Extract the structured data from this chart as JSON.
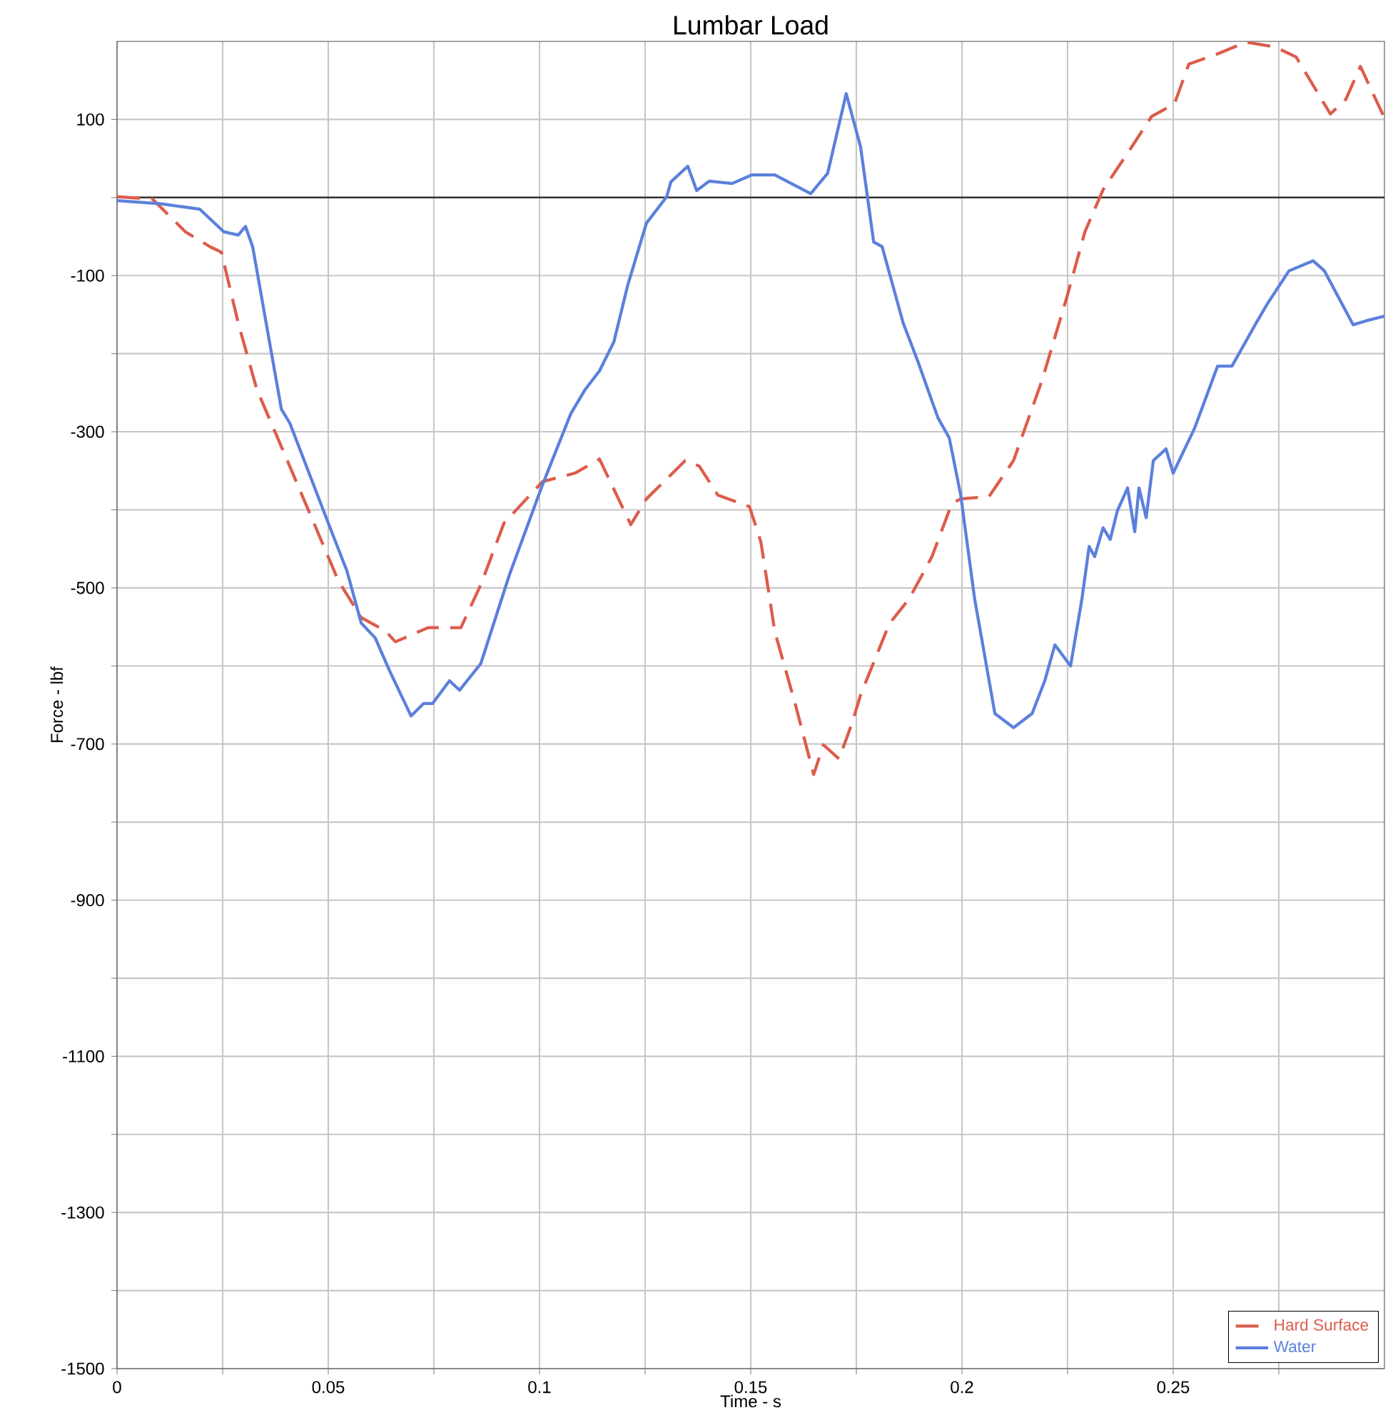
{
  "chart_data": {
    "type": "line",
    "title": "Lumbar Load",
    "xlabel": "Time - s",
    "ylabel": "Force - lbf",
    "xlim": [
      0,
      0.3
    ],
    "ylim": [
      -1500,
      200
    ],
    "xticks": [
      0,
      {
        "value": 0.025,
        "label": null
      },
      0.05,
      {
        "value": 0.075,
        "label": null
      },
      0.1,
      {
        "value": 0.125,
        "label": null
      },
      0.15,
      {
        "value": 0.175,
        "label": null
      },
      0.2,
      {
        "value": 0.225,
        "label": null
      },
      0.25,
      {
        "value": 0.275,
        "label": null
      }
    ],
    "yticks": [
      -1500,
      {
        "value": -1400,
        "label": null
      },
      -1300,
      {
        "value": -1200,
        "label": null
      },
      -1100,
      {
        "value": -1000,
        "label": null
      },
      -900,
      {
        "value": -800,
        "label": null
      },
      -700,
      {
        "value": -600,
        "label": null
      },
      -500,
      {
        "value": -400,
        "label": null
      },
      -300,
      {
        "value": -200,
        "label": null
      },
      -100,
      {
        "value": 0,
        "label": null
      },
      100
    ],
    "grid": true,
    "legend": "bottom right",
    "marker": "none",
    "ref_lines": [
      {
        "axis": "y",
        "value": 0,
        "color": "#333333",
        "line_style": "solid"
      }
    ],
    "series": [
      {
        "name": "Hard Surface",
        "color": "#dc5c4c",
        "line_style": "dashed",
        "x": [
          0,
          0.0084,
          0.0162,
          0.022,
          0.0247,
          0.0287,
          0.0331,
          0.0389,
          0.0466,
          0.0524,
          0.0578,
          0.0635,
          0.0659,
          0.0736,
          0.0814,
          0.0861,
          0.0916,
          0.1007,
          0.1084,
          0.1142,
          0.1216,
          0.1253,
          0.1345,
          0.1378,
          0.1422,
          0.1497,
          0.1524,
          0.1557,
          0.1605,
          0.1649,
          0.1672,
          0.1709,
          0.174,
          0.176,
          0.1828,
          0.1875,
          0.1929,
          0.1976,
          0.1997,
          0.2064,
          0.2122,
          0.2189,
          0.2247,
          0.2291,
          0.2334,
          0.2402,
          0.2449,
          0.2503,
          0.2537,
          0.2605,
          0.2672,
          0.274,
          0.2791,
          0.2872,
          0.2909,
          0.2943,
          0.3
        ],
        "values": [
          1,
          -2,
          -44,
          -63,
          -70,
          -161,
          -246,
          -319,
          -417,
          -491,
          -538,
          -555,
          -569,
          -551,
          -551,
          -496,
          -417,
          -364,
          -353,
          -335,
          -419,
          -386,
          -337,
          -344,
          -381,
          -396,
          -441,
          -556,
          -648,
          -739,
          -701,
          -719,
          -673,
          -637,
          -546,
          -514,
          -460,
          -392,
          -386,
          -383,
          -337,
          -235,
          -130,
          -44,
          10,
          65,
          104,
          120,
          171,
          184,
          199,
          193,
          180,
          107,
          126,
          168,
          102
        ]
      },
      {
        "name": "Water",
        "color": "#5b80dc",
        "line_style": "solid",
        "x": [
          0,
          0.0105,
          0.0196,
          0.0253,
          0.0287,
          0.0304,
          0.0321,
          0.0389,
          0.0409,
          0.05,
          0.0544,
          0.0578,
          0.0611,
          0.0645,
          0.0696,
          0.0726,
          0.0747,
          0.0787,
          0.0811,
          0.0861,
          0.0929,
          0.1007,
          0.1074,
          0.1108,
          0.1142,
          0.1176,
          0.1209,
          0.1253,
          0.1301,
          0.1311,
          0.1351,
          0.1372,
          0.1402,
          0.1456,
          0.1503,
          0.1557,
          0.1642,
          0.1682,
          0.1726,
          0.176,
          0.1791,
          0.1811,
          0.1861,
          0.1895,
          0.1943,
          0.197,
          0.1997,
          0.203,
          0.2078,
          0.2122,
          0.2166,
          0.2196,
          0.222,
          0.2257,
          0.2284,
          0.2301,
          0.2314,
          0.2334,
          0.2351,
          0.2368,
          0.2392,
          0.2409,
          0.2419,
          0.2436,
          0.2453,
          0.2483,
          0.25,
          0.2551,
          0.2605,
          0.2639,
          0.2696,
          0.2723,
          0.2774,
          0.2831,
          0.2858,
          0.2926,
          0.2956,
          0.3
        ],
        "values": [
          -4,
          -8,
          -15,
          -44,
          -48,
          -37,
          -63,
          -271,
          -289,
          -417,
          -478,
          -545,
          -564,
          -606,
          -664,
          -648,
          -648,
          -619,
          -631,
          -597,
          -483,
          -368,
          -277,
          -246,
          -222,
          -185,
          -112,
          -33,
          1,
          20,
          40,
          9,
          21,
          18,
          29,
          29,
          5,
          31,
          133,
          65,
          -57,
          -63,
          -161,
          -209,
          -282,
          -308,
          -381,
          -514,
          -661,
          -679,
          -661,
          -619,
          -573,
          -600,
          -514,
          -447,
          -460,
          -423,
          -438,
          -401,
          -372,
          -428,
          -372,
          -410,
          -337,
          -322,
          -353,
          -295,
          -216,
          -216,
          -161,
          -136,
          -94,
          -81,
          -94,
          -163,
          -158,
          -152
        ]
      }
    ]
  }
}
